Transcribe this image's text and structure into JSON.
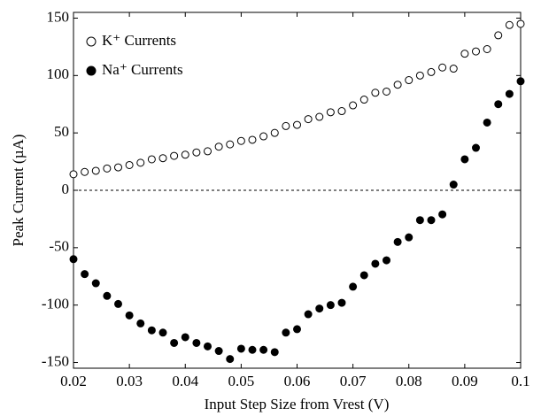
{
  "chart_data": {
    "type": "scatter",
    "xlabel": "Input Step Size from Vrest (V)",
    "ylabel": "Peak Current (µA)",
    "x": [
      0.02,
      0.022,
      0.024,
      0.026,
      0.028,
      0.03,
      0.032,
      0.034,
      0.036,
      0.038,
      0.04,
      0.042,
      0.044,
      0.046,
      0.048,
      0.05,
      0.052,
      0.054,
      0.056,
      0.058,
      0.06,
      0.062,
      0.064,
      0.066,
      0.068,
      0.07,
      0.072,
      0.074,
      0.076,
      0.078,
      0.08,
      0.082,
      0.084,
      0.086,
      0.088,
      0.09,
      0.092,
      0.094,
      0.096,
      0.098,
      0.1
    ],
    "series": [
      {
        "name": "K⁺ Currents",
        "color": "#000000",
        "marker": "open",
        "values": [
          14,
          16,
          17,
          19,
          20,
          22,
          24,
          27,
          28,
          30,
          31,
          33,
          34,
          38,
          40,
          43,
          44,
          47,
          50,
          56,
          57,
          62,
          64,
          68,
          69,
          74,
          79,
          85,
          86,
          92,
          96,
          100,
          103,
          107,
          106,
          119,
          121,
          123,
          135,
          144,
          145
        ]
      },
      {
        "name": "Na⁺ Currents",
        "color": "#000000",
        "marker": "filled",
        "values": [
          -60,
          -73,
          -81,
          -92,
          -99,
          -109,
          -116,
          -122,
          -124,
          -133,
          -128,
          -133,
          -136,
          -140,
          -147,
          -138,
          -139,
          -139,
          -141,
          -124,
          -121,
          -108,
          -103,
          -100,
          -98,
          -84,
          -74,
          -64,
          -61,
          -45,
          -41,
          -26,
          -26,
          -21,
          5,
          27,
          37,
          59,
          75,
          84,
          95
        ]
      }
    ],
    "xlim": [
      0.02,
      0.1
    ],
    "xticks": [
      0.02,
      0.03,
      0.04,
      0.05,
      0.06,
      0.07,
      0.08,
      0.09,
      0.1
    ],
    "ylim": [
      -155,
      155
    ],
    "yticks": [
      -150,
      -100,
      -50,
      0,
      50,
      100,
      150
    ],
    "zero_line": true,
    "legend": "upper left"
  }
}
